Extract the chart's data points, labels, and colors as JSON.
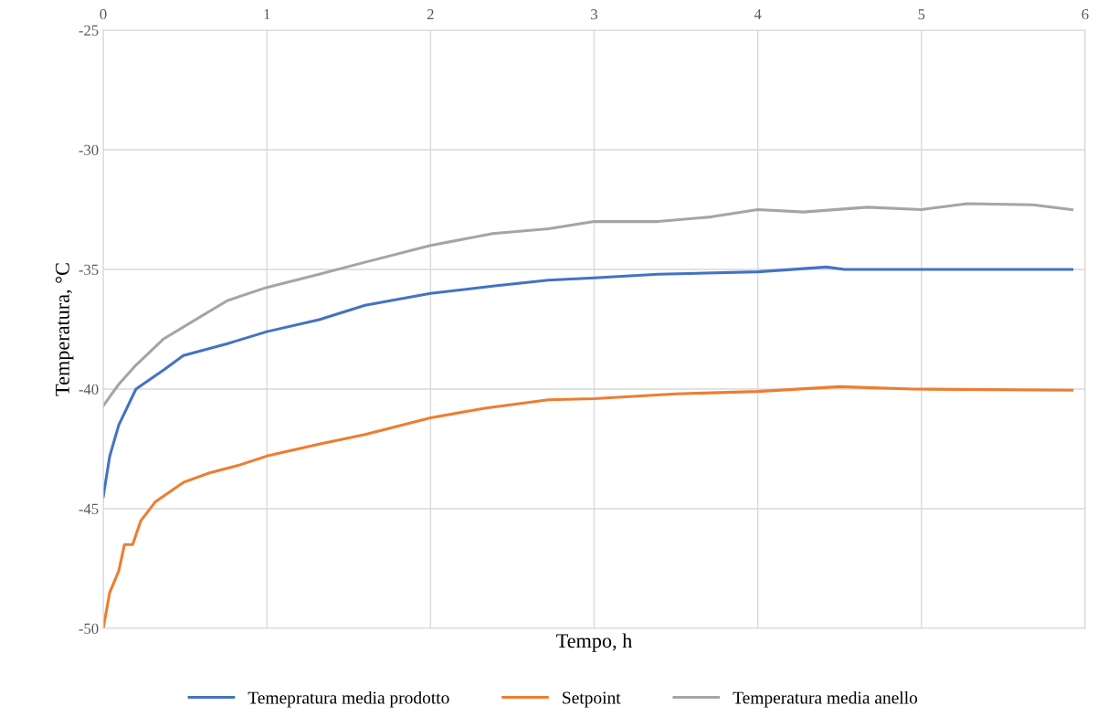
{
  "chart_data": {
    "type": "line",
    "xlabel": "Tempo, h",
    "ylabel": "Temperatura, °C",
    "xlim": [
      0,
      6
    ],
    "xticks": [
      0,
      1,
      2,
      3,
      4,
      5,
      6
    ],
    "ylim": [
      -50,
      -25
    ],
    "yticks": [
      -50,
      -45,
      -40,
      -35,
      -30,
      -25
    ],
    "grid": true,
    "legend": "bottom",
    "line_style": "solid",
    "marker": "none",
    "series": [
      {
        "name": "Temepratura media prodotto",
        "color": "#4472c4",
        "x": [
          0,
          0.04,
          0.095,
          0.2,
          0.37,
          0.49,
          0.76,
          1.0,
          1.32,
          1.6,
          2.0,
          2.38,
          2.72,
          3.0,
          3.39,
          4.0,
          4.42,
          4.53,
          5.92
        ],
        "values": [
          -44.5,
          -42.8,
          -41.5,
          -40.0,
          -39.2,
          -38.6,
          -38.1,
          -37.6,
          -37.1,
          -36.5,
          -36.0,
          -35.7,
          -35.45,
          -35.35,
          -35.2,
          -35.1,
          -34.9,
          -35.0,
          -35.0
        ]
      },
      {
        "name": "Setpoint",
        "color": "#ed7d31",
        "x": [
          0,
          0.04,
          0.095,
          0.13,
          0.18,
          0.23,
          0.32,
          0.49,
          0.65,
          0.82,
          1.0,
          1.32,
          1.6,
          2.0,
          2.33,
          2.72,
          3.0,
          3.5,
          4.0,
          4.5,
          4.95,
          5.92
        ],
        "values": [
          -50,
          -48.5,
          -47.6,
          -46.5,
          -46.5,
          -45.5,
          -44.7,
          -43.9,
          -43.5,
          -43.2,
          -42.8,
          -42.3,
          -41.9,
          -41.2,
          -40.8,
          -40.45,
          -40.4,
          -40.2,
          -40.1,
          -39.9,
          -40.0,
          -40.05
        ]
      },
      {
        "name": "Temperatura media anello",
        "color": "#a5a5a5",
        "x": [
          0,
          0.095,
          0.2,
          0.37,
          0.54,
          0.76,
          1.0,
          1.32,
          1.6,
          2.0,
          2.38,
          2.72,
          3.0,
          3.39,
          3.72,
          4.0,
          4.28,
          4.67,
          5.0,
          5.28,
          5.68,
          5.92
        ],
        "values": [
          -40.7,
          -39.8,
          -39.0,
          -37.9,
          -37.2,
          -36.3,
          -35.75,
          -35.2,
          -34.7,
          -34.0,
          -33.5,
          -33.3,
          -33.0,
          -33.0,
          -32.8,
          -32.5,
          -32.6,
          -32.4,
          -32.5,
          -32.25,
          -32.3,
          -32.5
        ]
      }
    ]
  }
}
